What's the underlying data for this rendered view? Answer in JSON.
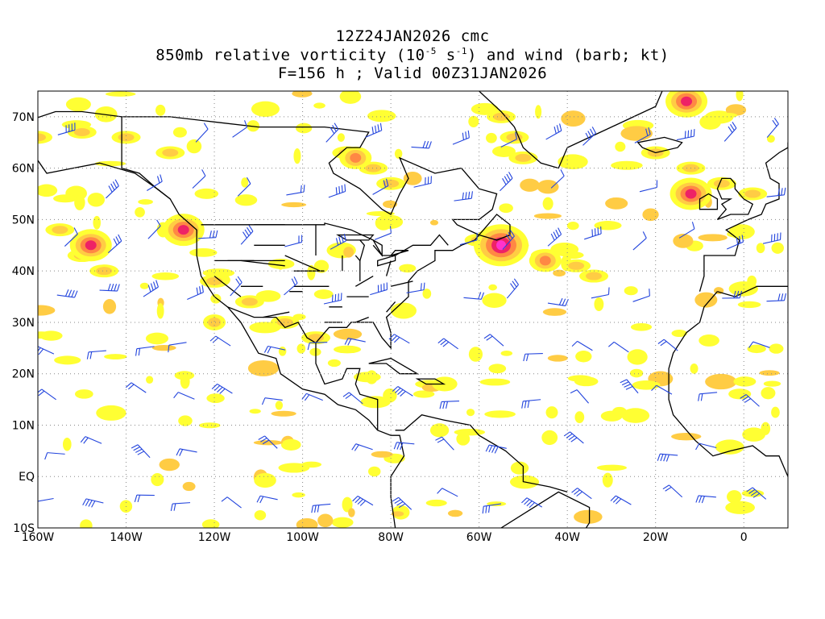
{
  "title": {
    "line1": "12Z24JAN2026 cmc",
    "line2_prefix": "850mb relative vorticity (10",
    "line2_exp1": "-5",
    "line2_mid": " s",
    "line2_exp2": "-1",
    "line2_suffix": ") and wind (barb; kt)",
    "line3": "F=156 h ; Valid 00Z31JAN2026"
  },
  "map": {
    "projection": "cylindrical equidistant",
    "lon_range": [
      -160,
      10
    ],
    "lat_range": [
      -10,
      75
    ],
    "gridlines": "dotted",
    "lon_labels": [
      "160W",
      "140W",
      "120W",
      "100W",
      "80W",
      "60W",
      "40W",
      "20W",
      "0"
    ],
    "lon_label_values": [
      -160,
      -140,
      -120,
      -100,
      -80,
      -60,
      -40,
      -20,
      0
    ],
    "lat_labels": [
      "70N",
      "60N",
      "50N",
      "40N",
      "30N",
      "20N",
      "10N",
      "EQ",
      "10S"
    ],
    "lat_label_values": [
      70,
      60,
      50,
      40,
      30,
      20,
      10,
      0,
      -10
    ],
    "colors": {
      "shade_low": "#ffff33",
      "shade_mid": "#ffcc44",
      "shade_high": "#ff8844",
      "shade_peak": "#ee2266",
      "shade_max": "#ff33cc",
      "barb": "#2244dd",
      "coast": "#000000",
      "grid": "#888888"
    },
    "vorticity_maxima": [
      {
        "lon": -55,
        "lat": 45,
        "level": "max"
      },
      {
        "lon": -127,
        "lat": 48,
        "level": "peak"
      },
      {
        "lon": -148,
        "lat": 45,
        "level": "peak"
      },
      {
        "lon": -13,
        "lat": 73,
        "level": "peak"
      },
      {
        "lon": -12,
        "lat": 55,
        "level": "peak"
      },
      {
        "lon": -88,
        "lat": 62,
        "level": "high"
      },
      {
        "lon": -45,
        "lat": 42,
        "level": "high"
      },
      {
        "lon": -120,
        "lat": 30,
        "level": "mid"
      }
    ]
  }
}
